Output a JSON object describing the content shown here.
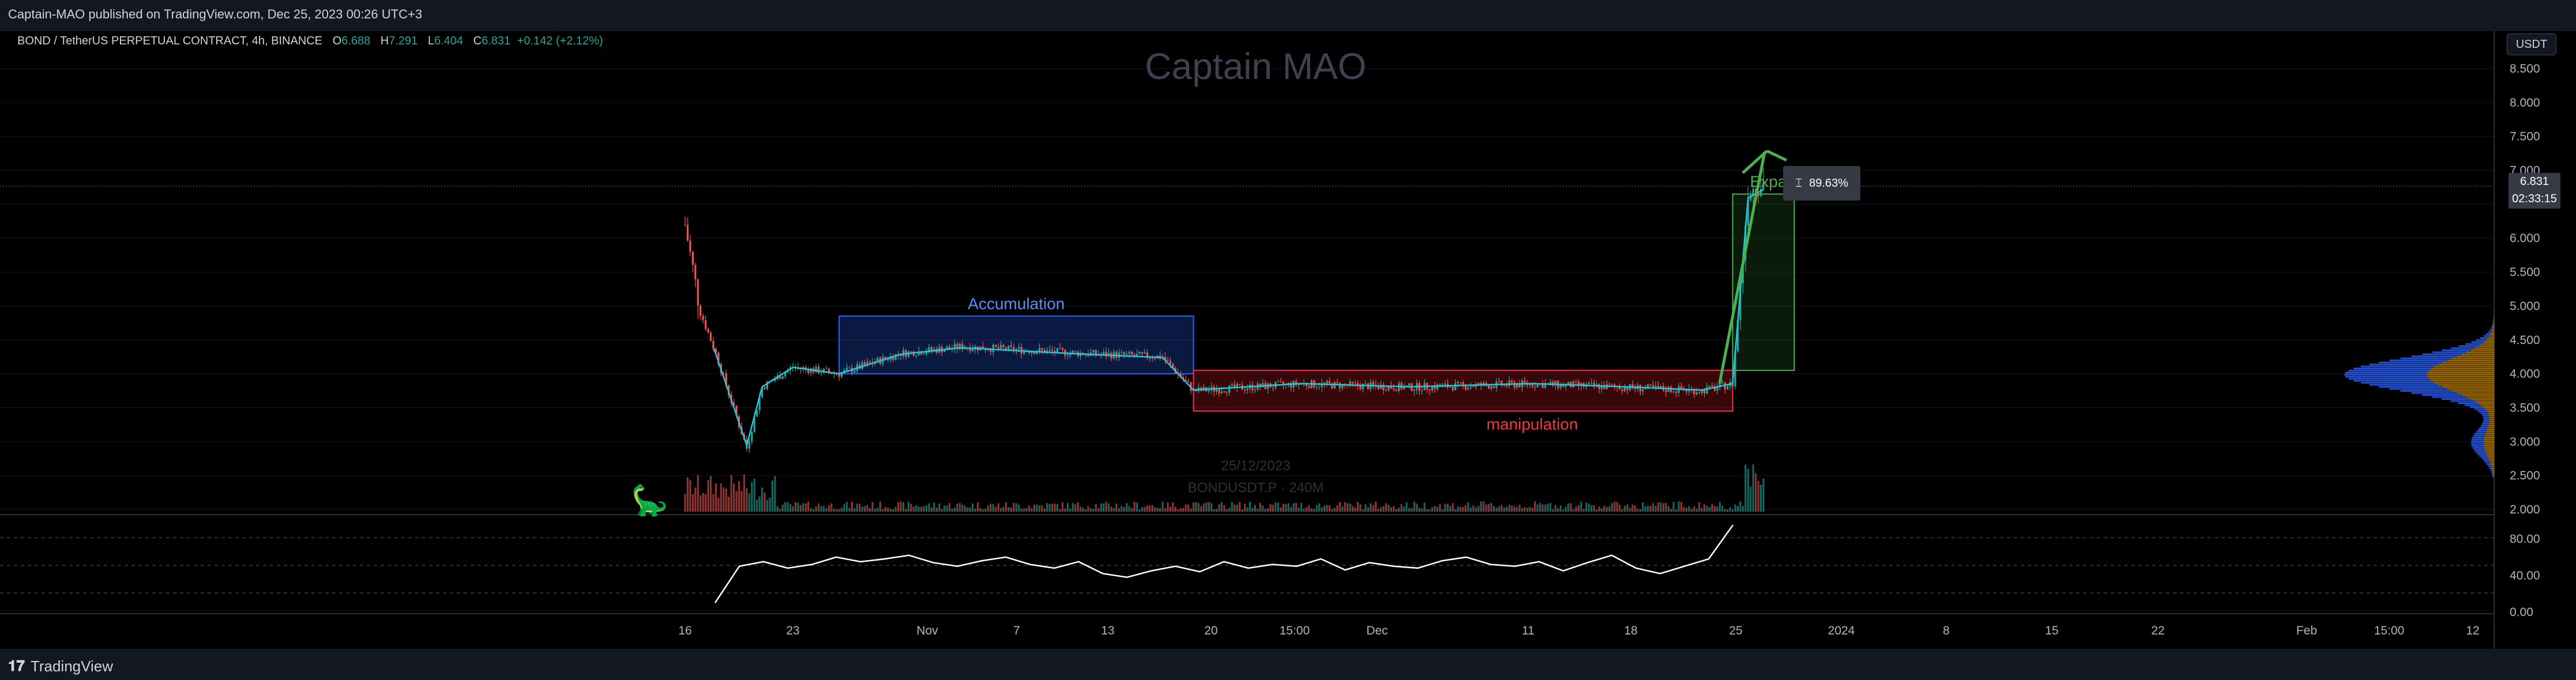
{
  "publish_info": "Captain-MAO published on TradingView.com, Dec 25, 2023 00:26 UTC+3",
  "footer_brand": "TradingView",
  "legend": {
    "symbol": "BOND / TetherUS PERPETUAL CONTRACT, 4h, BINANCE",
    "open_label": "O",
    "open": "6.688",
    "high_label": "H",
    "high": "7.291",
    "low_label": "L",
    "low": "6.404",
    "close_label": "C",
    "close": "6.831",
    "change": "+0.142 (+2.12%)"
  },
  "watermark": "Captain MAO",
  "symbol_watermark": {
    "date": "25/12/2023",
    "ticker": "BONDUSDT.P · 240M"
  },
  "currency_button": "USDT",
  "last_price_tag": {
    "price": "6.831",
    "countdown": "02:33:15"
  },
  "measure_tag": "89.63%",
  "colors": {
    "up": "#26a69a",
    "down": "#ef5350",
    "accumulation": "#2962ff",
    "manipulation": "#f23645",
    "expansion": "#4caf50",
    "rsi": "#ffffff",
    "volume_profile_up": "#2962ff",
    "volume_profile_down": "#f6a700"
  },
  "icons": [
    "dinosaur-icon",
    "tradingview-logo-icon",
    "ruler-icon"
  ],
  "chart_data": [
    {
      "type": "candlestick",
      "symbol": "BONDUSDT.P",
      "interval": "4h",
      "y_axis": {
        "scale": "linear",
        "ticks": [
          "8.500",
          "8.000",
          "7.500",
          "7.000",
          "6.500",
          "6.000",
          "5.500",
          "5.000",
          "4.500",
          "4.000",
          "3.500",
          "3.000",
          "2.500",
          "2.000"
        ],
        "ylim": [
          2.0,
          8.7
        ]
      },
      "x_axis": {
        "ticks": [
          "16",
          "23",
          "Nov",
          "7",
          "13",
          "20",
          "15:00",
          "Dec",
          "11",
          "18",
          "25",
          "2024",
          "8",
          "15",
          "22",
          "Feb",
          "15:00",
          "12"
        ]
      },
      "price_path": [
        {
          "x": "Oct 16",
          "y": 6.2
        },
        {
          "x": "Oct 17",
          "y": 4.9
        },
        {
          "x": "Oct 18",
          "y": 4.3
        },
        {
          "x": "Oct 19",
          "y": 3.6
        },
        {
          "x": "Oct 20",
          "y": 2.9
        },
        {
          "x": "Oct 21",
          "y": 3.8
        },
        {
          "x": "Oct 23",
          "y": 4.1
        },
        {
          "x": "Oct 26",
          "y": 4.0
        },
        {
          "x": "Oct 30",
          "y": 4.3
        },
        {
          "x": "Nov 3",
          "y": 4.4
        },
        {
          "x": "Nov 7",
          "y": 4.35
        },
        {
          "x": "Nov 11",
          "y": 4.3
        },
        {
          "x": "Nov 16",
          "y": 4.25
        },
        {
          "x": "Nov 18",
          "y": 3.75
        },
        {
          "x": "Nov 25",
          "y": 3.85
        },
        {
          "x": "Dec 2",
          "y": 3.8
        },
        {
          "x": "Dec 10",
          "y": 3.85
        },
        {
          "x": "Dec 16",
          "y": 3.8
        },
        {
          "x": "Dec 21",
          "y": 3.75
        },
        {
          "x": "Dec 23",
          "y": 3.85
        },
        {
          "x": "Dec 24",
          "y": 6.7
        },
        {
          "x": "Dec 25",
          "y": 6.83
        }
      ],
      "annotations": [
        {
          "text": "Accumulation",
          "from": "Oct 26",
          "to": "Nov 18",
          "price_top": 4.85,
          "price_bottom": 4.0
        },
        {
          "text": "manipulation",
          "from": "Nov 18",
          "to": "Dec 23",
          "price_top": 4.05,
          "price_bottom": 3.45
        },
        {
          "text": "Expansion",
          "from": "Dec 23",
          "to": "Dec 27",
          "price_top": 6.65,
          "price_bottom": 4.05,
          "target": 7.3
        }
      ]
    },
    {
      "type": "line",
      "name": "RSI",
      "y_axis": {
        "ticks": [
          "80.00",
          "40.00",
          "0.00"
        ],
        "ylim": [
          0,
          100
        ]
      },
      "values": [
        10,
        50,
        55,
        48,
        52,
        60,
        55,
        58,
        62,
        54,
        50,
        56,
        60,
        52,
        48,
        55,
        42,
        38,
        45,
        50,
        44,
        55,
        48,
        52,
        50,
        58,
        46,
        54,
        50,
        48,
        56,
        60,
        52,
        50,
        55,
        45,
        54,
        62,
        48,
        42,
        50,
        58,
        95
      ]
    }
  ]
}
